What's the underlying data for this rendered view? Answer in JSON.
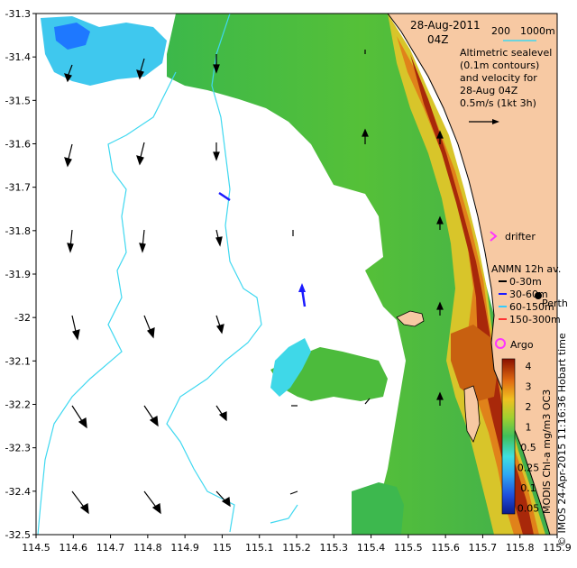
{
  "header": {
    "date": "28-Aug-2011",
    "time": "04Z",
    "scale_left": "200",
    "scale_right": "1000m"
  },
  "legend": {
    "altimetry_lines": [
      "Altimetric sealevel",
      "(0.1m contours)",
      "and velocity for",
      "28-Aug 04Z",
      "0.5m/s (1kt 3h)"
    ],
    "drifter": "drifter",
    "anmn_title": "ANMN 12h av.",
    "anmn_items": [
      {
        "label": "0-30m",
        "color": "#000000"
      },
      {
        "label": "30-60m",
        "color": "#1a1aff"
      },
      {
        "label": "60-150m",
        "color": "#33ccff"
      },
      {
        "label": "150-300m",
        "color": "#ff3333"
      }
    ],
    "argo": "Argo",
    "place": "Perth"
  },
  "colorbar": {
    "title": "MODIS Chl-a mg/m3 OC3",
    "ticks": [
      "4",
      "3",
      "2",
      "1",
      "0.5",
      "0.25",
      "0.1",
      "0.05"
    ]
  },
  "credit": "© IMOS 24-Apr-2015 11:16:36 Hobart time",
  "axes": {
    "x_ticks": [
      "114.5",
      "114.6",
      "114.7",
      "114.8",
      "114.9",
      "115",
      "115.1",
      "115.2",
      "115.3",
      "115.4",
      "115.5",
      "115.6",
      "115.7",
      "115.8",
      "115.9"
    ],
    "y_ticks": [
      "-31.3",
      "-31.4",
      "-31.5",
      "-31.6",
      "-31.7",
      "-31.8",
      "-31.9",
      "-32",
      "-32.1",
      "-32.2",
      "-32.3",
      "-32.4",
      "-32.5"
    ]
  },
  "colors": {
    "land": "#f7c9a3",
    "green": "#44bb44",
    "yellow": "#e8d12a",
    "orange": "#e8861a",
    "red": "#a01a00",
    "cyan": "#3fd8f0",
    "blue": "#1e8cff"
  }
}
